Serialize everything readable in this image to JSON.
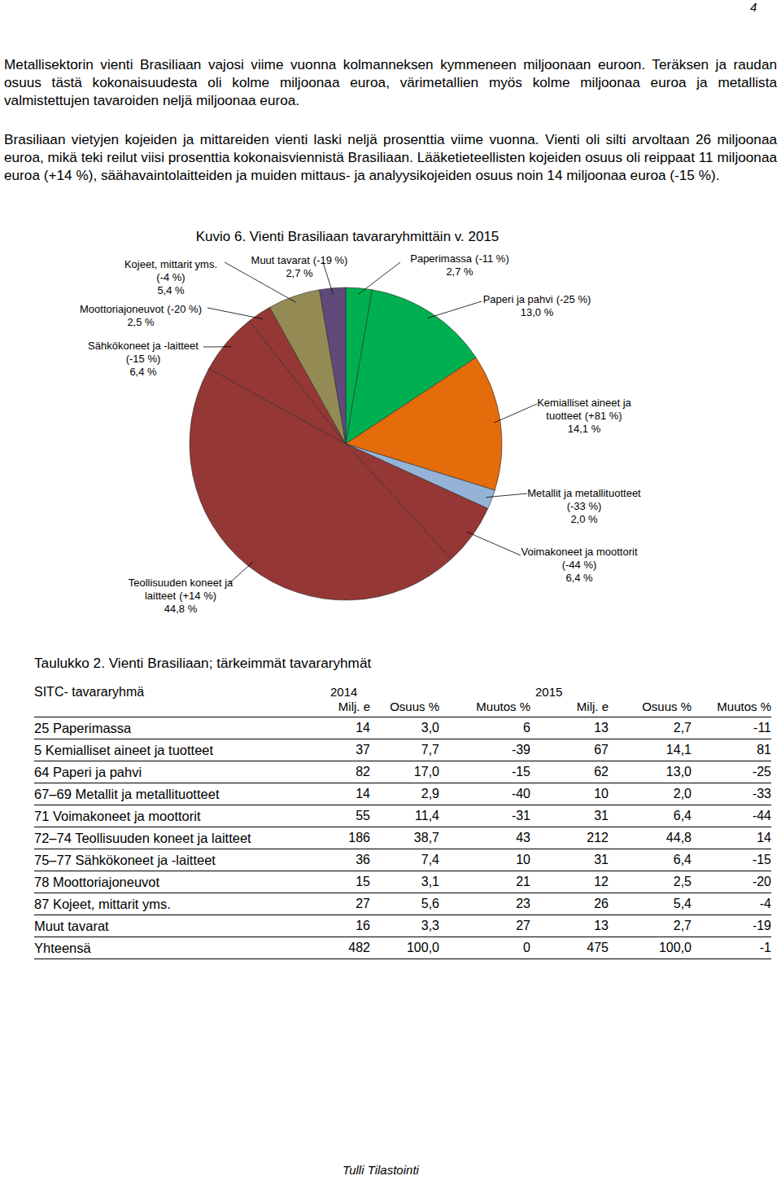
{
  "page_number": "4",
  "paragraphs": [
    "Metallisektorin vienti Brasiliaan vajosi viime vuonna kolmanneksen kymmeneen miljoonaan euroon. Teräksen ja raudan osuus tästä kokonaisuudesta oli kolme miljoonaa euroa, värimetallien myös kolme miljoonaa euroa ja metallista valmistettujen tavaroiden neljä miljoonaa euroa.",
    "Brasiliaan vietyjen kojeiden ja mittareiden vienti laski neljä prosenttia viime vuonna. Vienti oli silti arvoltaan 26 miljoonaa euroa, mikä teki reilut viisi prosenttia kokonaisviennistä Brasiliaan. Lääketieteellisten kojeiden osuus oli reippaat 11 miljoonaa euroa (+14 %), säähavaintolaitteiden ja muiden mittaus- ja analyysikojeiden osuus noin 14 miljoonaa euroa (-15 %)."
  ],
  "chart_data": {
    "type": "pie",
    "title": "Kuvio 6. Vienti Brasiliaan tavararyhmittäin v. 2015",
    "categories": [
      "Paperimassa",
      "Paperi ja pahvi",
      "Kemialliset aineet ja tuotteet",
      "Metallit ja metallituotteet",
      "Voimakoneet ja moottorit",
      "Teollisuuden koneet ja laitteet",
      "Sähkökoneet ja -laitteet",
      "Moottoriajoneuvot",
      "Kojeet, mittarit yms.",
      "Muut tavarat"
    ],
    "change_labels": [
      "(-11 %)",
      "(-25 %)",
      "(+81 %)",
      "(-33 %)",
      "(-44 %)",
      "(+14 %)",
      "(-15 %)",
      "(-20 %)",
      "(-4 %)",
      "(-19 %)"
    ],
    "values": [
      2.7,
      13.0,
      14.1,
      2.0,
      6.4,
      44.8,
      6.4,
      2.5,
      5.4,
      2.7
    ],
    "value_labels": [
      "2,7 %",
      "13,0 %",
      "14,1 %",
      "2,0 %",
      "6,4 %",
      "44,8 %",
      "6,4 %",
      "2,5 %",
      "5,4 %",
      "2,7 %"
    ],
    "colors": [
      "#00b050",
      "#00b050",
      "#e46c0a",
      "#95b3d7",
      "#953735",
      "#953735",
      "#953735",
      "#953735",
      "#948a54",
      "#604a7b"
    ],
    "data_labels": true
  },
  "table": {
    "title": "Taulukko 2. Vienti Brasiliaan; tärkeimmät tavararyhmät",
    "header": {
      "label": "SITC- tavararyhmä",
      "years": [
        "2014",
        "2015"
      ],
      "columns": [
        "Milj. e",
        "Osuus %",
        "Muutos %"
      ]
    },
    "rows": [
      [
        "25 Paperimassa",
        "14",
        "3,0",
        "6",
        "13",
        "2,7",
        "-11"
      ],
      [
        "5 Kemialliset aineet ja tuotteet",
        "37",
        "7,7",
        "-39",
        "67",
        "14,1",
        "81"
      ],
      [
        "64 Paperi ja pahvi",
        "82",
        "17,0",
        "-15",
        "62",
        "13,0",
        "-25"
      ],
      [
        "67–69 Metallit ja metallituotteet",
        "14",
        "2,9",
        "-40",
        "10",
        "2,0",
        "-33"
      ],
      [
        "71 Voimakoneet ja moottorit",
        "55",
        "11,4",
        "-31",
        "31",
        "6,4",
        "-44"
      ],
      [
        "72–74 Teollisuuden koneet ja laitteet",
        "186",
        "38,7",
        "43",
        "212",
        "44,8",
        "14"
      ],
      [
        "75–77 Sähkökoneet ja -laitteet",
        "36",
        "7,4",
        "10",
        "31",
        "6,4",
        "-15"
      ],
      [
        "78 Moottoriajoneuvot",
        "15",
        "3,1",
        "21",
        "12",
        "2,5",
        "-20"
      ],
      [
        "87 Kojeet, mittarit yms.",
        "27",
        "5,6",
        "23",
        "26",
        "5,4",
        "-4"
      ],
      [
        "Muut tavarat",
        "16",
        "3,3",
        "27",
        "13",
        "2,7",
        "-19"
      ],
      [
        "Yhteensä",
        "482",
        "100,0",
        "0",
        "475",
        "100,0",
        "-1"
      ]
    ]
  },
  "footer": "Tulli Tilastointi"
}
